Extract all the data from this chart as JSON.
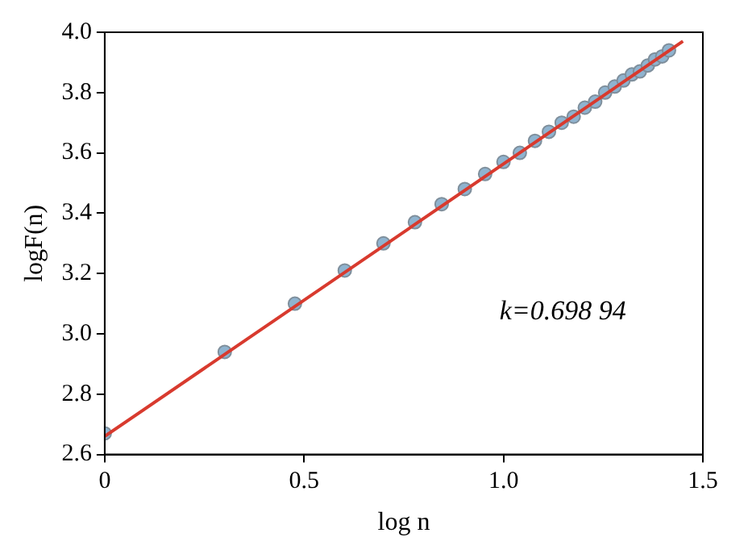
{
  "chart_data": {
    "type": "scatter",
    "xlabel": "log n",
    "ylabel": "logF(n)",
    "xlim": [
      0,
      1.5
    ],
    "xticks": [
      0,
      0.5,
      {
        "value": 1,
        "label": "1.0"
      },
      1.5
    ],
    "ylim": [
      2.6,
      4.0
    ],
    "yticks": [
      2.6,
      2.8,
      {
        "value": 3,
        "label": "3.0"
      },
      3.2,
      3.4,
      3.6,
      3.8,
      {
        "value": 4,
        "label": "4.0"
      }
    ],
    "legend": false,
    "grid": false,
    "annotations": [
      "k=0.698 94"
    ],
    "series": [
      {
        "marker": "circle",
        "color": "#8fb3cf",
        "x": [
          0,
          0.301,
          0.477,
          0.602,
          0.699,
          0.778,
          0.845,
          0.903,
          0.954,
          1.0,
          1.041,
          1.079,
          1.114,
          1.146,
          1.176,
          1.204,
          1.23,
          1.255,
          1.279,
          1.301,
          1.322,
          1.342,
          1.362,
          1.38,
          1.398,
          1.415
        ],
        "values": [
          2.67,
          2.94,
          3.1,
          3.21,
          3.3,
          3.37,
          3.43,
          3.48,
          3.53,
          3.57,
          3.6,
          3.64,
          3.67,
          3.7,
          3.72,
          3.75,
          3.77,
          3.8,
          3.82,
          3.84,
          3.86,
          3.87,
          3.89,
          3.91,
          3.92,
          3.94
        ]
      },
      {
        "type": "line",
        "marker": "none",
        "color": "#d83a2e",
        "x": [
          0,
          1.45
        ],
        "values": [
          2.66,
          3.97
        ]
      }
    ]
  }
}
